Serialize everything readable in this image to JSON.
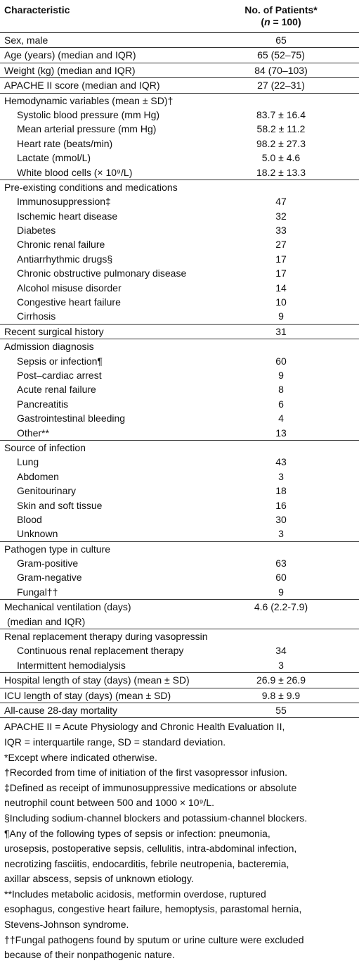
{
  "header": {
    "characteristic": "Characteristic",
    "patients": "No. of Patients*",
    "n_open": "(",
    "n": "n",
    "n_close": " = 100)"
  },
  "groups": [
    {
      "label": "Sex, male",
      "value": "65"
    },
    {
      "label": "Age (years) (median and IQR)",
      "value": "65 (52–75)"
    },
    {
      "label": "Weight (kg) (median and IQR)",
      "value": "84 (70–103)"
    },
    {
      "label": "APACHE II score (median and IQR)",
      "value": "27 (22–31)"
    },
    {
      "label": "Hemodynamic variables (mean ± SD)†",
      "items": [
        {
          "label": "Systolic blood pressure (mm Hg)",
          "value": "83.7 ± 16.4"
        },
        {
          "label": "Mean arterial pressure (mm Hg)",
          "value": "58.2 ± 11.2"
        },
        {
          "label": "Heart rate (beats/min)",
          "value": "98.2 ± 27.3"
        },
        {
          "label": "Lactate (mmol/L)",
          "value": "5.0 ± 4.6"
        },
        {
          "label": "White blood cells (× 10⁹/L)",
          "value": "18.2 ± 13.3"
        }
      ]
    },
    {
      "label": "Pre-existing conditions and medications",
      "items": [
        {
          "label": "Immunosuppression‡",
          "value": "47"
        },
        {
          "label": "Ischemic heart disease",
          "value": "32"
        },
        {
          "label": "Diabetes",
          "value": "33"
        },
        {
          "label": "Chronic renal failure",
          "value": "27"
        },
        {
          "label": "Antiarrhythmic drugs§",
          "value": "17"
        },
        {
          "label": "Chronic obstructive pulmonary disease",
          "value": "17"
        },
        {
          "label": "Alcohol misuse disorder",
          "value": "14"
        },
        {
          "label": "Congestive heart failure",
          "value": "10"
        },
        {
          "label": "Cirrhosis",
          "value": "9"
        }
      ]
    },
    {
      "label": "Recent surgical history",
      "value": "31"
    },
    {
      "label": "Admission diagnosis",
      "items": [
        {
          "label": "Sepsis or infection¶",
          "value": "60"
        },
        {
          "label": "Post–cardiac arrest",
          "value": "9"
        },
        {
          "label": "Acute renal failure",
          "value": "8"
        },
        {
          "label": "Pancreatitis",
          "value": "6"
        },
        {
          "label": "Gastrointestinal bleeding",
          "value": "4"
        },
        {
          "label": "Other**",
          "value": "13"
        }
      ]
    },
    {
      "label": "Source of infection",
      "items": [
        {
          "label": "Lung",
          "value": "43"
        },
        {
          "label": "Abdomen",
          "value": "3"
        },
        {
          "label": "Genitourinary",
          "value": "18"
        },
        {
          "label": "Skin and soft tissue",
          "value": "16"
        },
        {
          "label": "Blood",
          "value": "30"
        },
        {
          "label": "Unknown",
          "value": "3"
        }
      ]
    },
    {
      "label": "Pathogen type in culture",
      "items": [
        {
          "label": "Gram-positive",
          "value": "63"
        },
        {
          "label": "Gram-negative",
          "value": "60"
        },
        {
          "label": "Fungal††",
          "value": "9"
        }
      ]
    },
    {
      "label": "Mechanical ventilation (days)",
      "label_cont": "(median and IQR)",
      "value": "4.6 (2.2-7.9)"
    },
    {
      "label": "Renal replacement therapy during vasopressin",
      "items": [
        {
          "label": "Continuous renal replacement therapy",
          "value": "34"
        },
        {
          "label": "Intermittent hemodialysis",
          "value": "3"
        }
      ]
    },
    {
      "label": "Hospital length of stay (days) (mean ± SD)",
      "value": "26.9 ± 26.9"
    },
    {
      "label": "ICU length of stay (days) (mean ± SD)",
      "value": "9.8 ± 9.9"
    },
    {
      "label": "All-cause 28-day mortality",
      "value": "55"
    }
  ],
  "footnotes": [
    [
      "APACHE II = Acute Physiology and Chronic Health Evaluation II,",
      "IQR = interquartile range, SD = standard deviation."
    ],
    [
      "*Except where indicated otherwise."
    ],
    [
      "†Recorded from time of initiation of the first vasopressor infusion."
    ],
    [
      "‡Defined as receipt of immunosuppressive medications or absolute",
      "neutrophil count between 500 and 1000 × 10⁹/L."
    ],
    [
      "§Including sodium-channel blockers and potassium-channel blockers."
    ],
    [
      "¶Any of the following types of sepsis or infection: pneumonia,",
      "urosepsis, postoperative sepsis, cellulitis, intra-abdominal infection,",
      "necrotizing fasciitis, endocarditis, febrile neutropenia, bacteremia,",
      "axillar abscess, sepsis of unknown etiology."
    ],
    [
      "**Includes metabolic acidosis, metformin overdose, ruptured",
      "esophagus, congestive heart failure, hemoptysis, parastomal hernia,",
      "Stevens-Johnson syndrome."
    ],
    [
      "††Fungal pathogens found by sputum or urine culture were excluded",
      "because of their nonpathogenic nature."
    ]
  ]
}
